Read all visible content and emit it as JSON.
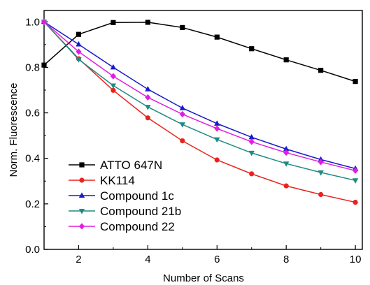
{
  "chart_data": {
    "type": "line",
    "title": "",
    "xlabel": "Number of Scans",
    "ylabel": "Norm. Fluorescence",
    "xlim": [
      1,
      10.2
    ],
    "ylim": [
      0.0,
      1.05
    ],
    "xticks": [
      2,
      4,
      6,
      8,
      10
    ],
    "yticks": [
      0.0,
      0.2,
      0.4,
      0.6,
      0.8,
      1.0
    ],
    "tick_labels_x": [
      "2",
      "4",
      "6",
      "8",
      "10"
    ],
    "tick_labels_y": [
      "0.0",
      "0.2",
      "0.4",
      "0.6",
      "0.8",
      "1.0"
    ],
    "grid": false,
    "legend_position": "bottom-left",
    "x": [
      1,
      2,
      3,
      4,
      5,
      6,
      7,
      8,
      9,
      10
    ],
    "series": [
      {
        "name": "ATTO 647N",
        "color": "#000000",
        "marker": "square",
        "values": [
          0.81,
          0.945,
          0.997,
          0.998,
          0.975,
          0.933,
          0.882,
          0.833,
          0.787,
          0.738
        ]
      },
      {
        "name": "KK114",
        "color": "#e8231e",
        "marker": "circle",
        "values": [
          1.0,
          0.838,
          0.699,
          0.578,
          0.477,
          0.393,
          0.332,
          0.279,
          0.241,
          0.207
        ]
      },
      {
        "name": "Compound 1c",
        "color": "#1a1acc",
        "marker": "triangle-up",
        "values": [
          1.0,
          0.901,
          0.8,
          0.704,
          0.621,
          0.553,
          0.493,
          0.441,
          0.395,
          0.355
        ]
      },
      {
        "name": "Compound 21b",
        "color": "#1f8a84",
        "marker": "triangle-down",
        "values": [
          1.0,
          0.835,
          0.72,
          0.626,
          0.549,
          0.483,
          0.424,
          0.377,
          0.338,
          0.303
        ]
      },
      {
        "name": "Compound 22",
        "color": "#e01ee0",
        "marker": "diamond",
        "values": [
          1.0,
          0.869,
          0.761,
          0.668,
          0.594,
          0.531,
          0.473,
          0.425,
          0.384,
          0.346
        ]
      }
    ]
  }
}
